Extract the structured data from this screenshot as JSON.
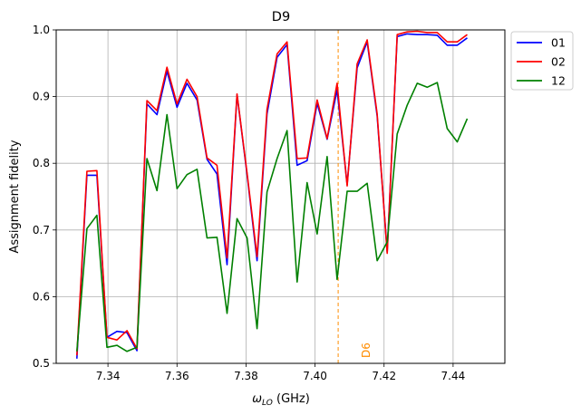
{
  "chart_data": {
    "type": "line",
    "title": "D9",
    "xlabel_main": "ω",
    "xlabel_sub": "LO",
    "xlabel_unit": " (GHz)",
    "ylabel": "Assignment fidelity",
    "xlim": [
      7.325,
      7.455
    ],
    "ylim": [
      0.5,
      1.0
    ],
    "xticks": [
      7.34,
      7.36,
      7.38,
      7.4,
      7.42,
      7.44
    ],
    "xtick_labels": [
      "7.34",
      "7.36",
      "7.38",
      "7.40",
      "7.42",
      "7.44"
    ],
    "yticks": [
      0.5,
      0.6,
      0.7,
      0.8,
      0.9,
      1.0
    ],
    "ytick_labels": [
      "0.5",
      "0.6",
      "0.7",
      "0.8",
      "0.9",
      "1.0"
    ],
    "grid": true,
    "legend_position": "outside-top-right",
    "x": [
      7.331,
      7.3339,
      7.3368,
      7.3397,
      7.3426,
      7.3455,
      7.3484,
      7.3513,
      7.3542,
      7.3571,
      7.36,
      7.3629,
      7.3658,
      7.3687,
      7.3716,
      7.3745,
      7.3774,
      7.3803,
      7.3832,
      7.3861,
      7.389,
      7.3919,
      7.3948,
      7.3977,
      7.4006,
      7.4035,
      7.4064,
      7.4093,
      7.4122,
      7.4151,
      7.418,
      7.4209,
      7.4238,
      7.4267,
      7.4296,
      7.4325,
      7.4354,
      7.4383,
      7.4412,
      7.4441,
      7.447,
      7.4499
    ],
    "series": [
      {
        "name": "01",
        "color": "#0000ff",
        "values": [
          0.507,
          0.782,
          0.782,
          0.539,
          0.548,
          0.546,
          0.519,
          0.889,
          0.873,
          0.938,
          0.884,
          0.92,
          0.895,
          0.806,
          0.784,
          0.648,
          0.903,
          0.783,
          0.654,
          0.874,
          0.959,
          0.978,
          0.797,
          0.804,
          0.89,
          0.836,
          0.91,
          0.768,
          0.943,
          0.982,
          0.871,
          0.667,
          0.99,
          0.994,
          0.993,
          0.993,
          0.992,
          0.977,
          0.977,
          0.988,
          null,
          null
        ]
      },
      {
        "name": "02",
        "color": "#ff0000",
        "values": [
          0.512,
          0.788,
          0.789,
          0.539,
          0.535,
          0.549,
          0.522,
          0.894,
          0.879,
          0.944,
          0.889,
          0.926,
          0.9,
          0.808,
          0.797,
          0.658,
          0.904,
          0.785,
          0.66,
          0.881,
          0.964,
          0.982,
          0.807,
          0.808,
          0.895,
          0.837,
          0.92,
          0.766,
          0.949,
          0.985,
          0.874,
          0.665,
          0.993,
          0.997,
          0.998,
          0.996,
          0.996,
          0.982,
          0.982,
          0.993,
          null,
          null
        ]
      },
      {
        "name": "12",
        "color": "#008000",
        "values": [
          0.518,
          0.702,
          0.722,
          0.524,
          0.527,
          0.518,
          0.524,
          0.807,
          0.759,
          0.873,
          0.762,
          0.783,
          0.791,
          0.688,
          0.689,
          0.575,
          0.717,
          0.688,
          0.552,
          0.757,
          0.807,
          0.849,
          0.622,
          0.771,
          0.694,
          0.81,
          0.626,
          0.758,
          0.758,
          0.77,
          0.654,
          0.682,
          0.844,
          0.887,
          0.92,
          0.914,
          0.921,
          0.852,
          0.832,
          0.867,
          null,
          null
        ]
      }
    ],
    "annotation": {
      "label": "D6",
      "x": 7.4067,
      "color": "#ff8c00",
      "style": "dashed-vertical"
    }
  }
}
